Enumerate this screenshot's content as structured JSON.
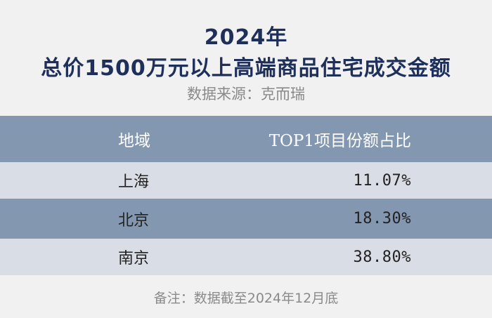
{
  "chart_data": {
    "type": "table",
    "title_line1": "2024年",
    "title_line2": "总价1500万元以上高端商品住宅成交金额",
    "source": "数据来源：克而瑞",
    "columns": [
      "地域",
      "TOP1项目份额占比"
    ],
    "rows": [
      {
        "region": "上海",
        "share": "11.07%"
      },
      {
        "region": "北京",
        "share": "18.30%"
      },
      {
        "region": "南京",
        "share": "38.80%"
      }
    ],
    "note": "备注：数据截至2024年12月底"
  },
  "colors": {
    "title": "#1e2f5a",
    "header_bg": "#8497b0",
    "row_light": "#d9dde5",
    "row_shade": "#8497b0",
    "page_bg": "#f1f1f1",
    "muted_text": "#8a8a8a"
  }
}
